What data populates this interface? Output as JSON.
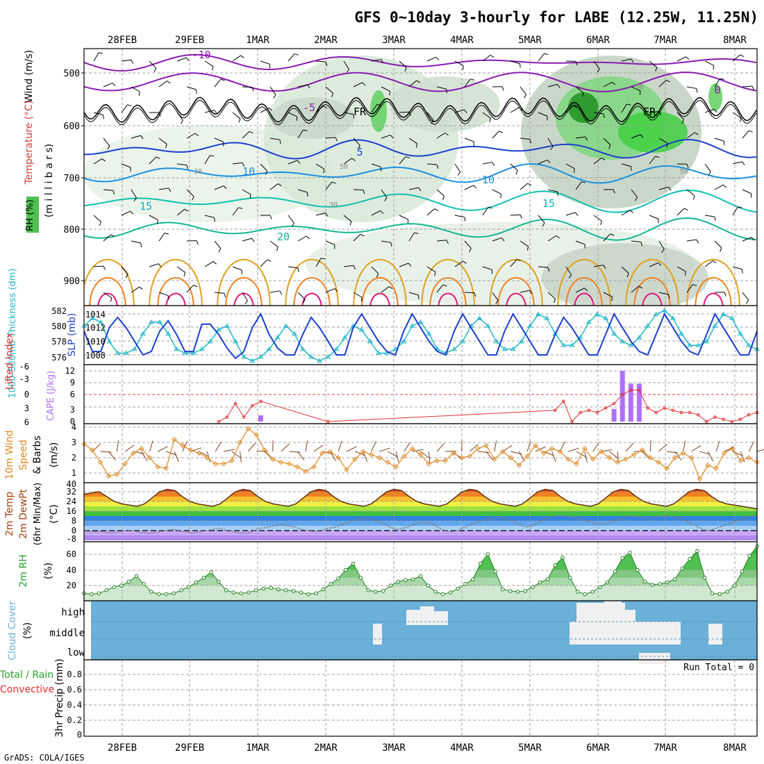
{
  "title": "GFS 0~10day 3-hourly for LABE (12.25W, 11.25N)",
  "credit": "GrADS: COLA/IGES",
  "dates": [
    "28FEB",
    "29FEB",
    "1MAR",
    "2MAR",
    "3MAR",
    "4MAR",
    "5MAR",
    "6MAR",
    "7MAR",
    "8MAR"
  ],
  "colors": {
    "frame": "#000000",
    "grid": "#a0a0a0",
    "slp": "#1a3fd0",
    "thickness": "#20b8c8",
    "cape": "#b070ff",
    "lifted_index": "#e03030",
    "wind": "#e08820",
    "dewpt": "#808080",
    "rh": "#28a028",
    "cloud": "#6ab0d8",
    "cloud_gap": "#f0f0f0"
  },
  "panels": {
    "upper_air": {
      "labels": [
        "Wind (m/s)",
        "Temperature (°C)",
        "(m i l l i b a r s)",
        "RH (%)"
      ],
      "yticks": [
        "500",
        "600",
        "700",
        "800",
        "900"
      ],
      "contour_labels": [
        "-10",
        "-5",
        "FR",
        "FR",
        "5",
        "10",
        "10",
        "15",
        "15",
        "20",
        "0",
        "50",
        "50",
        "50",
        "30",
        "30"
      ]
    },
    "slp_thickness": {
      "left_label": "1000-500mb Thickness (dm)",
      "right_label": "SLP (mb)",
      "left_ticks": [
        "582",
        "580",
        "578",
        "576"
      ],
      "right_ticks": [
        "1014",
        "1012",
        "1010",
        "1008"
      ]
    },
    "cape_li": {
      "left_label": "Lifted Index",
      "right_label": "CAPE (J/kg)",
      "left_ticks": [
        "-6",
        "-3",
        "0",
        "3",
        "6"
      ],
      "right_ticks": [
        "12",
        "9",
        "6",
        "3",
        "0"
      ]
    },
    "wind10m": {
      "labels": [
        "10m Wind",
        "Speed",
        "& Barbs",
        "(m/s)"
      ],
      "yticks": [
        "4",
        "3",
        "2",
        "1"
      ]
    },
    "temp2m": {
      "labels": [
        "2m Temp",
        "2m DewPt",
        "(6hr Min/Max)",
        "(°C)"
      ],
      "yticks": [
        "40",
        "32",
        "24",
        "16",
        "8",
        "0",
        "-8"
      ]
    },
    "rh2m": {
      "labels": [
        "2m RH",
        "(%)"
      ],
      "yticks": [
        "60",
        "40",
        "20"
      ]
    },
    "cloud": {
      "labels": [
        "Cloud Cover",
        "(%)"
      ],
      "levels": [
        "high",
        "middle",
        "low"
      ]
    },
    "precip": {
      "labels": [
        "Total / Rain",
        "Convective",
        "3hr Precip (mm)"
      ],
      "yticks": [
        "0.8",
        "0.6",
        "0.4",
        "0.2",
        "0"
      ],
      "run_total": "Run Total = 0"
    }
  },
  "chart_data": [
    {
      "type": "line",
      "name": "slp_thickness",
      "series": [
        {
          "name": "SLP (mb)",
          "values": [
            1011.5,
            1008.5,
            1008.5,
            1012,
            1013.5,
            1012,
            1010,
            1008,
            1008.5,
            1011.5,
            1013,
            1011,
            1008.5,
            1008.5,
            1012.5,
            1012.5,
            1011,
            1009,
            1007.5,
            1008.5,
            1012,
            1014,
            1011,
            1009,
            1008,
            1008,
            1011,
            1013.5,
            1012,
            1010,
            1008,
            1008,
            1012,
            1014,
            1012,
            1010,
            1008.5,
            1008,
            1011.5,
            1014,
            1012,
            1010,
            1008.5,
            1008,
            1011.5,
            1014,
            1012,
            1010,
            1008,
            1008,
            1011.5,
            1014,
            1012,
            1010,
            1008,
            1008,
            1011,
            1013.5,
            1012,
            1010,
            1008,
            1008,
            1011,
            1014,
            1012,
            1010,
            1008.5,
            1008,
            1011,
            1014,
            1012,
            1010,
            1008.5,
            1008,
            1011,
            1014,
            1012,
            1010,
            1008,
            1008,
            1011.5
          ]
        },
        {
          "name": "1000-500mb Thickness (dm)",
          "values": [
            580,
            581,
            580.5,
            578,
            576.5,
            576.5,
            577,
            579,
            580.5,
            580.5,
            579,
            577,
            576.5,
            576.5,
            577,
            578,
            579.5,
            580,
            578,
            576,
            575.5,
            576,
            577,
            578.5,
            580,
            579,
            577,
            576,
            575.5,
            576,
            577,
            578.5,
            580,
            579.5,
            578,
            576.5,
            576.5,
            577,
            578,
            580,
            580.5,
            579,
            577,
            576.5,
            577,
            578,
            580,
            581,
            580,
            578,
            577,
            577,
            578,
            580,
            581.5,
            581,
            579,
            577.5,
            577.5,
            578.5,
            580.5,
            581.5,
            581,
            579,
            578,
            577.5,
            578.5,
            580,
            581.5,
            582,
            581,
            579,
            577.5,
            577.5,
            578,
            580,
            581.5,
            581,
            579,
            577.5,
            577
          ]
        }
      ]
    },
    {
      "type": "bar",
      "name": "cape_li",
      "x_indices": [
        3,
        4,
        5,
        13,
        14,
        15,
        16,
        17,
        18,
        19,
        20,
        21,
        22,
        23,
        24,
        25,
        26,
        27,
        28,
        29,
        30,
        31,
        32,
        33,
        34,
        35,
        36,
        37,
        38,
        39,
        40,
        41,
        42,
        43,
        44,
        45,
        46,
        47,
        48,
        49,
        50,
        51,
        52,
        53,
        54,
        55,
        56,
        57,
        58,
        59,
        60,
        61,
        62,
        63,
        64,
        65,
        66,
        67,
        68,
        69,
        70,
        71,
        72,
        73,
        74,
        75,
        76,
        77,
        78,
        79,
        80
      ],
      "series": [
        {
          "name": "CAPE (J/kg)",
          "indices": [
            21,
            63,
            64,
            65,
            66
          ],
          "values": [
            1.5,
            3,
            12,
            9,
            9
          ]
        },
        {
          "name": "Lifted Index",
          "indices": [
            16,
            17,
            18,
            19,
            20,
            21,
            29,
            56,
            57,
            58,
            59,
            60,
            61,
            62,
            63,
            64,
            65,
            66,
            67,
            68,
            69,
            70,
            71,
            72,
            73,
            74,
            75,
            76,
            77,
            78,
            79,
            80
          ],
          "values": [
            6,
            5,
            2,
            5,
            2.5,
            1.5,
            6,
            3.5,
            1.5,
            6,
            4,
            3.5,
            4,
            3,
            2,
            0,
            -1,
            -1,
            3,
            4,
            3,
            3.5,
            4,
            4,
            4.5,
            6,
            5,
            5.5,
            6,
            5.5,
            4.5,
            4
          ]
        }
      ]
    },
    {
      "type": "line",
      "name": "wind10m",
      "series": [
        {
          "name": "Speed (m/s)",
          "values": [
            2.9,
            2.5,
            1.7,
            0.8,
            0.9,
            1.6,
            2.3,
            2.6,
            2.0,
            1.4,
            1.3,
            3.2,
            2.8,
            2.5,
            2.3,
            2.0,
            1.6,
            1.6,
            1.8,
            3.0,
            3.9,
            3.5,
            2.5,
            1.9,
            1.7,
            1.6,
            1.4,
            1.1,
            1.4,
            2.3,
            2.4,
            2.0,
            1.2,
            1.9,
            2.4,
            2.2,
            2.0,
            1.7,
            1.4,
            2.1,
            2.6,
            2.2,
            1.6,
            1.8,
            1.8,
            2.3,
            2.0,
            2.1,
            2.6,
            2.8,
            1.9,
            2.4,
            2.0,
            1.5,
            2.1,
            2.8,
            2.3,
            2.6,
            2.4,
            1.9,
            1.6,
            2.6,
            1.9,
            2.4,
            2.0,
            1.7,
            1.9,
            2.2,
            2.5,
            2.0,
            1.7,
            1.3,
            2.0,
            2.3,
            2.0,
            0.6,
            1.5,
            1.3,
            2.3,
            2.6,
            1.8,
            2.0,
            1.7
          ]
        }
      ]
    },
    {
      "type": "area",
      "name": "temp2m",
      "series": [
        {
          "name": "2m Temp",
          "values": [
            30,
            31,
            32,
            28,
            24,
            22,
            21,
            20,
            22,
            27,
            32,
            34,
            33,
            28,
            24,
            22,
            21,
            20,
            22,
            27,
            32,
            34,
            33,
            28,
            24,
            22,
            21,
            20,
            22,
            27,
            32,
            34,
            33,
            28,
            24,
            22,
            21,
            20,
            22,
            27,
            32,
            34,
            33,
            28,
            24,
            22,
            21,
            20,
            22,
            27,
            32,
            34,
            33,
            28,
            24,
            22,
            21,
            20,
            22,
            27,
            32,
            34,
            33,
            28,
            24,
            22,
            21,
            20,
            22,
            27,
            32,
            34,
            33,
            28,
            24,
            22,
            21,
            20,
            22,
            27,
            32,
            34,
            33,
            28,
            24,
            22,
            21,
            20,
            19,
            18
          ]
        },
        {
          "name": "2m DewPt",
          "values": [
            0,
            -1,
            -1,
            -1,
            -2,
            -1,
            0,
            0,
            -1,
            -2,
            -2,
            -1,
            0,
            1,
            0,
            -1,
            -2,
            -1,
            0,
            1,
            2,
            0,
            -1,
            -2,
            -2,
            0,
            2,
            3,
            4,
            5,
            4,
            3,
            1,
            0,
            -1,
            0,
            2,
            3,
            5,
            7,
            9,
            10,
            10,
            8,
            6,
            3,
            1,
            2,
            4,
            6,
            7,
            6,
            3,
            0,
            -1,
            0,
            3,
            5,
            7,
            9,
            10,
            11,
            10,
            8,
            5,
            3,
            4,
            7,
            10,
            12,
            13,
            12,
            11,
            10,
            8,
            6,
            5,
            6,
            8,
            10,
            12,
            12,
            11,
            10,
            11,
            12,
            12,
            11,
            9,
            7,
            4,
            1,
            0,
            2,
            4,
            6,
            8,
            10,
            12,
            13
          ]
        }
      ]
    },
    {
      "type": "area",
      "name": "rh2m",
      "series": [
        {
          "name": "2m RH (%)",
          "values": [
            10,
            9,
            10,
            14,
            18,
            20,
            25,
            32,
            22,
            12,
            9,
            9,
            10,
            14,
            18,
            24,
            30,
            37,
            25,
            14,
            11,
            10,
            11,
            14,
            16,
            17,
            15,
            14,
            13,
            11,
            9,
            10,
            15,
            22,
            29,
            40,
            48,
            30,
            14,
            12,
            13,
            20,
            25,
            27,
            28,
            32,
            20,
            12,
            9,
            11,
            16,
            22,
            28,
            48,
            60,
            38,
            15,
            13,
            12,
            13,
            18,
            24,
            28,
            46,
            56,
            30,
            12,
            9,
            12,
            18,
            24,
            38,
            55,
            62,
            40,
            25,
            21,
            22,
            24,
            28,
            42,
            54,
            64,
            30,
            10,
            9,
            12,
            20,
            38,
            58,
            70
          ]
        }
      ]
    },
    {
      "type": "bar",
      "name": "precip",
      "series": [
        {
          "name": "3hr Precip (mm)",
          "values": []
        }
      ],
      "ylim": [
        0,
        1
      ]
    }
  ]
}
